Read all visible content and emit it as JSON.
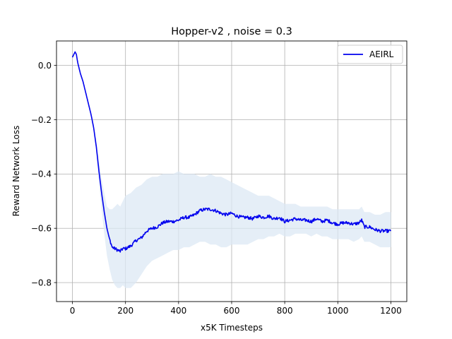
{
  "chart_data": {
    "type": "line",
    "title": "Hopper-v2 , noise = 0.3",
    "xlabel": "x5K Timesteps",
    "ylabel": "Reward Network Loss",
    "xlim": [
      -60,
      1260
    ],
    "ylim": [
      -0.87,
      0.09
    ],
    "xticks": [
      0,
      200,
      400,
      600,
      800,
      1000,
      1200
    ],
    "yticks": [
      0.0,
      -0.2,
      -0.4,
      -0.6,
      -0.8
    ],
    "xtick_labels": [
      "0",
      "200",
      "400",
      "600",
      "800",
      "1000",
      "1200"
    ],
    "ytick_labels": [
      "0.0",
      "−0.2",
      "−0.4",
      "−0.6",
      "−0.8"
    ],
    "grid": true,
    "legend_position": "top-right",
    "series": [
      {
        "name": "AEIRL",
        "color": "#0000ee",
        "band_color": "#dce8f4",
        "x": [
          0,
          5,
          10,
          15,
          20,
          30,
          40,
          50,
          60,
          70,
          80,
          90,
          100,
          110,
          120,
          130,
          140,
          150,
          160,
          170,
          180,
          190,
          200,
          220,
          240,
          260,
          280,
          300,
          320,
          340,
          360,
          380,
          400,
          420,
          440,
          460,
          480,
          500,
          520,
          540,
          560,
          580,
          600,
          620,
          640,
          660,
          680,
          700,
          720,
          740,
          760,
          780,
          800,
          820,
          840,
          860,
          880,
          900,
          920,
          940,
          960,
          980,
          1000,
          1020,
          1040,
          1060,
          1080,
          1090,
          1100,
          1120,
          1140,
          1160,
          1180,
          1200
        ],
        "y": [
          0.03,
          0.04,
          0.05,
          0.04,
          0.01,
          -0.03,
          -0.06,
          -0.1,
          -0.14,
          -0.18,
          -0.23,
          -0.3,
          -0.39,
          -0.47,
          -0.54,
          -0.6,
          -0.64,
          -0.67,
          -0.675,
          -0.68,
          -0.685,
          -0.675,
          -0.675,
          -0.665,
          -0.645,
          -0.635,
          -0.61,
          -0.6,
          -0.595,
          -0.58,
          -0.575,
          -0.575,
          -0.57,
          -0.56,
          -0.56,
          -0.55,
          -0.535,
          -0.53,
          -0.53,
          -0.535,
          -0.545,
          -0.55,
          -0.545,
          -0.555,
          -0.56,
          -0.56,
          -0.565,
          -0.555,
          -0.56,
          -0.555,
          -0.565,
          -0.56,
          -0.575,
          -0.57,
          -0.565,
          -0.57,
          -0.57,
          -0.575,
          -0.565,
          -0.575,
          -0.57,
          -0.58,
          -0.585,
          -0.58,
          -0.58,
          -0.585,
          -0.58,
          -0.57,
          -0.595,
          -0.595,
          -0.605,
          -0.61,
          -0.61,
          -0.61
        ],
        "upper": [
          0.03,
          0.04,
          0.05,
          0.04,
          0.01,
          -0.03,
          -0.06,
          -0.1,
          -0.14,
          -0.18,
          -0.22,
          -0.28,
          -0.35,
          -0.42,
          -0.47,
          -0.52,
          -0.53,
          -0.53,
          -0.52,
          -0.51,
          -0.52,
          -0.5,
          -0.48,
          -0.47,
          -0.45,
          -0.44,
          -0.42,
          -0.41,
          -0.41,
          -0.4,
          -0.4,
          -0.4,
          -0.39,
          -0.4,
          -0.4,
          -0.4,
          -0.41,
          -0.41,
          -0.4,
          -0.41,
          -0.41,
          -0.42,
          -0.43,
          -0.44,
          -0.45,
          -0.46,
          -0.47,
          -0.48,
          -0.48,
          -0.48,
          -0.49,
          -0.5,
          -0.51,
          -0.51,
          -0.51,
          -0.52,
          -0.52,
          -0.52,
          -0.52,
          -0.52,
          -0.52,
          -0.53,
          -0.53,
          -0.53,
          -0.53,
          -0.53,
          -0.53,
          -0.52,
          -0.54,
          -0.54,
          -0.55,
          -0.55,
          -0.54,
          -0.54
        ],
        "lower": [
          0.03,
          0.04,
          0.05,
          0.04,
          0.01,
          -0.03,
          -0.06,
          -0.1,
          -0.14,
          -0.18,
          -0.24,
          -0.32,
          -0.43,
          -0.53,
          -0.62,
          -0.7,
          -0.75,
          -0.79,
          -0.81,
          -0.82,
          -0.82,
          -0.81,
          -0.82,
          -0.82,
          -0.8,
          -0.77,
          -0.74,
          -0.72,
          -0.71,
          -0.7,
          -0.69,
          -0.68,
          -0.68,
          -0.67,
          -0.67,
          -0.66,
          -0.65,
          -0.65,
          -0.66,
          -0.66,
          -0.67,
          -0.67,
          -0.66,
          -0.66,
          -0.66,
          -0.66,
          -0.65,
          -0.64,
          -0.64,
          -0.63,
          -0.63,
          -0.62,
          -0.63,
          -0.63,
          -0.62,
          -0.62,
          -0.62,
          -0.63,
          -0.62,
          -0.63,
          -0.63,
          -0.64,
          -0.64,
          -0.64,
          -0.64,
          -0.65,
          -0.64,
          -0.63,
          -0.65,
          -0.65,
          -0.66,
          -0.67,
          -0.67,
          -0.67
        ]
      }
    ]
  }
}
